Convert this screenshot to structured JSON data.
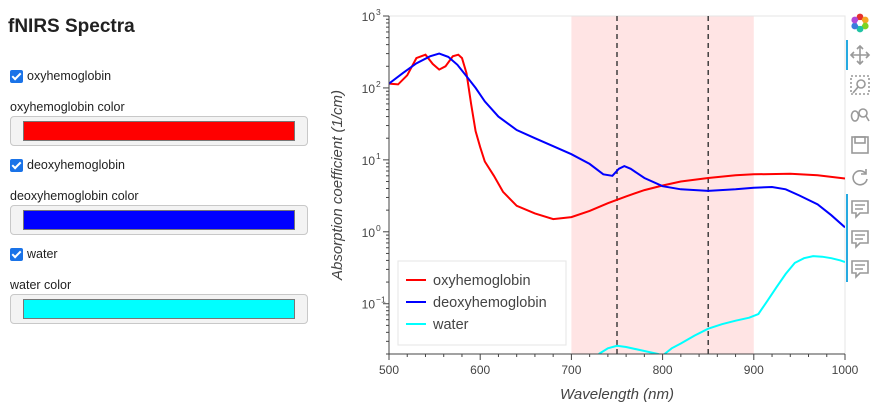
{
  "sidebar": {
    "title": "fNIRS Spectra",
    "items": [
      {
        "checkbox_label": "oxyhemoglobin",
        "color_label": "oxyhemoglobin color",
        "color": "#ff0000",
        "checked": true
      },
      {
        "checkbox_label": "deoxyhemoglobin",
        "color_label": "deoxyhemoglobin color",
        "color": "#0000ff",
        "checked": true
      },
      {
        "checkbox_label": "water",
        "color_label": "water color",
        "color": "#00ffff",
        "checked": true
      }
    ]
  },
  "toolbar": {
    "tools": [
      "bokeh-logo-icon",
      "pan-icon",
      "box-zoom-icon",
      "wheel-zoom-icon",
      "save-icon",
      "reset-icon",
      "hover-icon",
      "hover-icon",
      "hover-icon"
    ]
  },
  "chart_data": {
    "type": "line",
    "xlabel": "Wavelength (nm)",
    "ylabel": "Absorption coefficient (1/cm)",
    "xlim": [
      500,
      1000
    ],
    "ylim": [
      0.02,
      1000
    ],
    "yscale": "log",
    "xticks": [
      "500",
      "600",
      "700",
      "800",
      "900",
      "1000"
    ],
    "yticks": [
      {
        "value": 1000,
        "base": "10",
        "exp": "3"
      },
      {
        "value": 100,
        "base": "10",
        "exp": "2"
      },
      {
        "value": 10,
        "base": "10",
        "exp": "1"
      },
      {
        "value": 1,
        "base": "10",
        "exp": "0"
      },
      {
        "value": 0.1,
        "base": "10",
        "exp": "−1"
      }
    ],
    "shaded_band": [
      700,
      900
    ],
    "vlines": [
      750,
      850
    ],
    "legend_position": "bottom-left",
    "series": [
      {
        "name": "oxyhemoglobin",
        "color": "#ff0000",
        "points": [
          [
            500,
            115
          ],
          [
            510,
            112
          ],
          [
            520,
            150
          ],
          [
            530,
            260
          ],
          [
            540,
            290
          ],
          [
            548,
            215
          ],
          [
            555,
            180
          ],
          [
            562,
            200
          ],
          [
            570,
            275
          ],
          [
            576,
            290
          ],
          [
            580,
            260
          ],
          [
            585,
            160
          ],
          [
            590,
            60
          ],
          [
            595,
            25
          ],
          [
            600,
            15
          ],
          [
            605,
            9.5
          ],
          [
            615,
            6
          ],
          [
            625,
            3.6
          ],
          [
            640,
            2.3
          ],
          [
            660,
            1.8
          ],
          [
            680,
            1.5
          ],
          [
            700,
            1.6
          ],
          [
            720,
            1.95
          ],
          [
            740,
            2.5
          ],
          [
            760,
            3.1
          ],
          [
            780,
            3.8
          ],
          [
            800,
            4.4
          ],
          [
            820,
            5
          ],
          [
            850,
            5.6
          ],
          [
            880,
            6.1
          ],
          [
            900,
            6.3
          ],
          [
            940,
            6.4
          ],
          [
            970,
            6.1
          ],
          [
            1000,
            5.5
          ]
        ]
      },
      {
        "name": "deoxyhemoglobin",
        "color": "#0000ff",
        "points": [
          [
            500,
            115
          ],
          [
            515,
            160
          ],
          [
            530,
            220
          ],
          [
            545,
            275
          ],
          [
            555,
            300
          ],
          [
            565,
            270
          ],
          [
            575,
            210
          ],
          [
            585,
            145
          ],
          [
            595,
            100
          ],
          [
            605,
            65
          ],
          [
            620,
            40
          ],
          [
            640,
            26
          ],
          [
            660,
            20
          ],
          [
            680,
            15.5
          ],
          [
            700,
            12
          ],
          [
            720,
            8.8
          ],
          [
            735,
            6.3
          ],
          [
            745,
            6
          ],
          [
            752,
            7.5
          ],
          [
            758,
            8.2
          ],
          [
            765,
            7.5
          ],
          [
            780,
            5.6
          ],
          [
            800,
            4.3
          ],
          [
            820,
            3.9
          ],
          [
            850,
            3.7
          ],
          [
            880,
            3.9
          ],
          [
            900,
            4.1
          ],
          [
            920,
            4.2
          ],
          [
            935,
            3.9
          ],
          [
            950,
            3.2
          ],
          [
            970,
            2.4
          ],
          [
            985,
            1.7
          ],
          [
            1000,
            1.15
          ]
        ]
      },
      {
        "name": "water",
        "color": "#00ffff",
        "points": [
          [
            730,
            0.02
          ],
          [
            740,
            0.024
          ],
          [
            750,
            0.026
          ],
          [
            760,
            0.025
          ],
          [
            780,
            0.022
          ],
          [
            795,
            0.02
          ],
          [
            800,
            0.019
          ],
          [
            810,
            0.024
          ],
          [
            820,
            0.028
          ],
          [
            835,
            0.036
          ],
          [
            850,
            0.045
          ],
          [
            865,
            0.052
          ],
          [
            880,
            0.058
          ],
          [
            895,
            0.064
          ],
          [
            905,
            0.072
          ],
          [
            915,
            0.11
          ],
          [
            925,
            0.17
          ],
          [
            935,
            0.26
          ],
          [
            945,
            0.37
          ],
          [
            955,
            0.43
          ],
          [
            965,
            0.46
          ],
          [
            975,
            0.45
          ],
          [
            985,
            0.43
          ],
          [
            995,
            0.4
          ],
          [
            1000,
            0.38
          ]
        ]
      }
    ]
  }
}
